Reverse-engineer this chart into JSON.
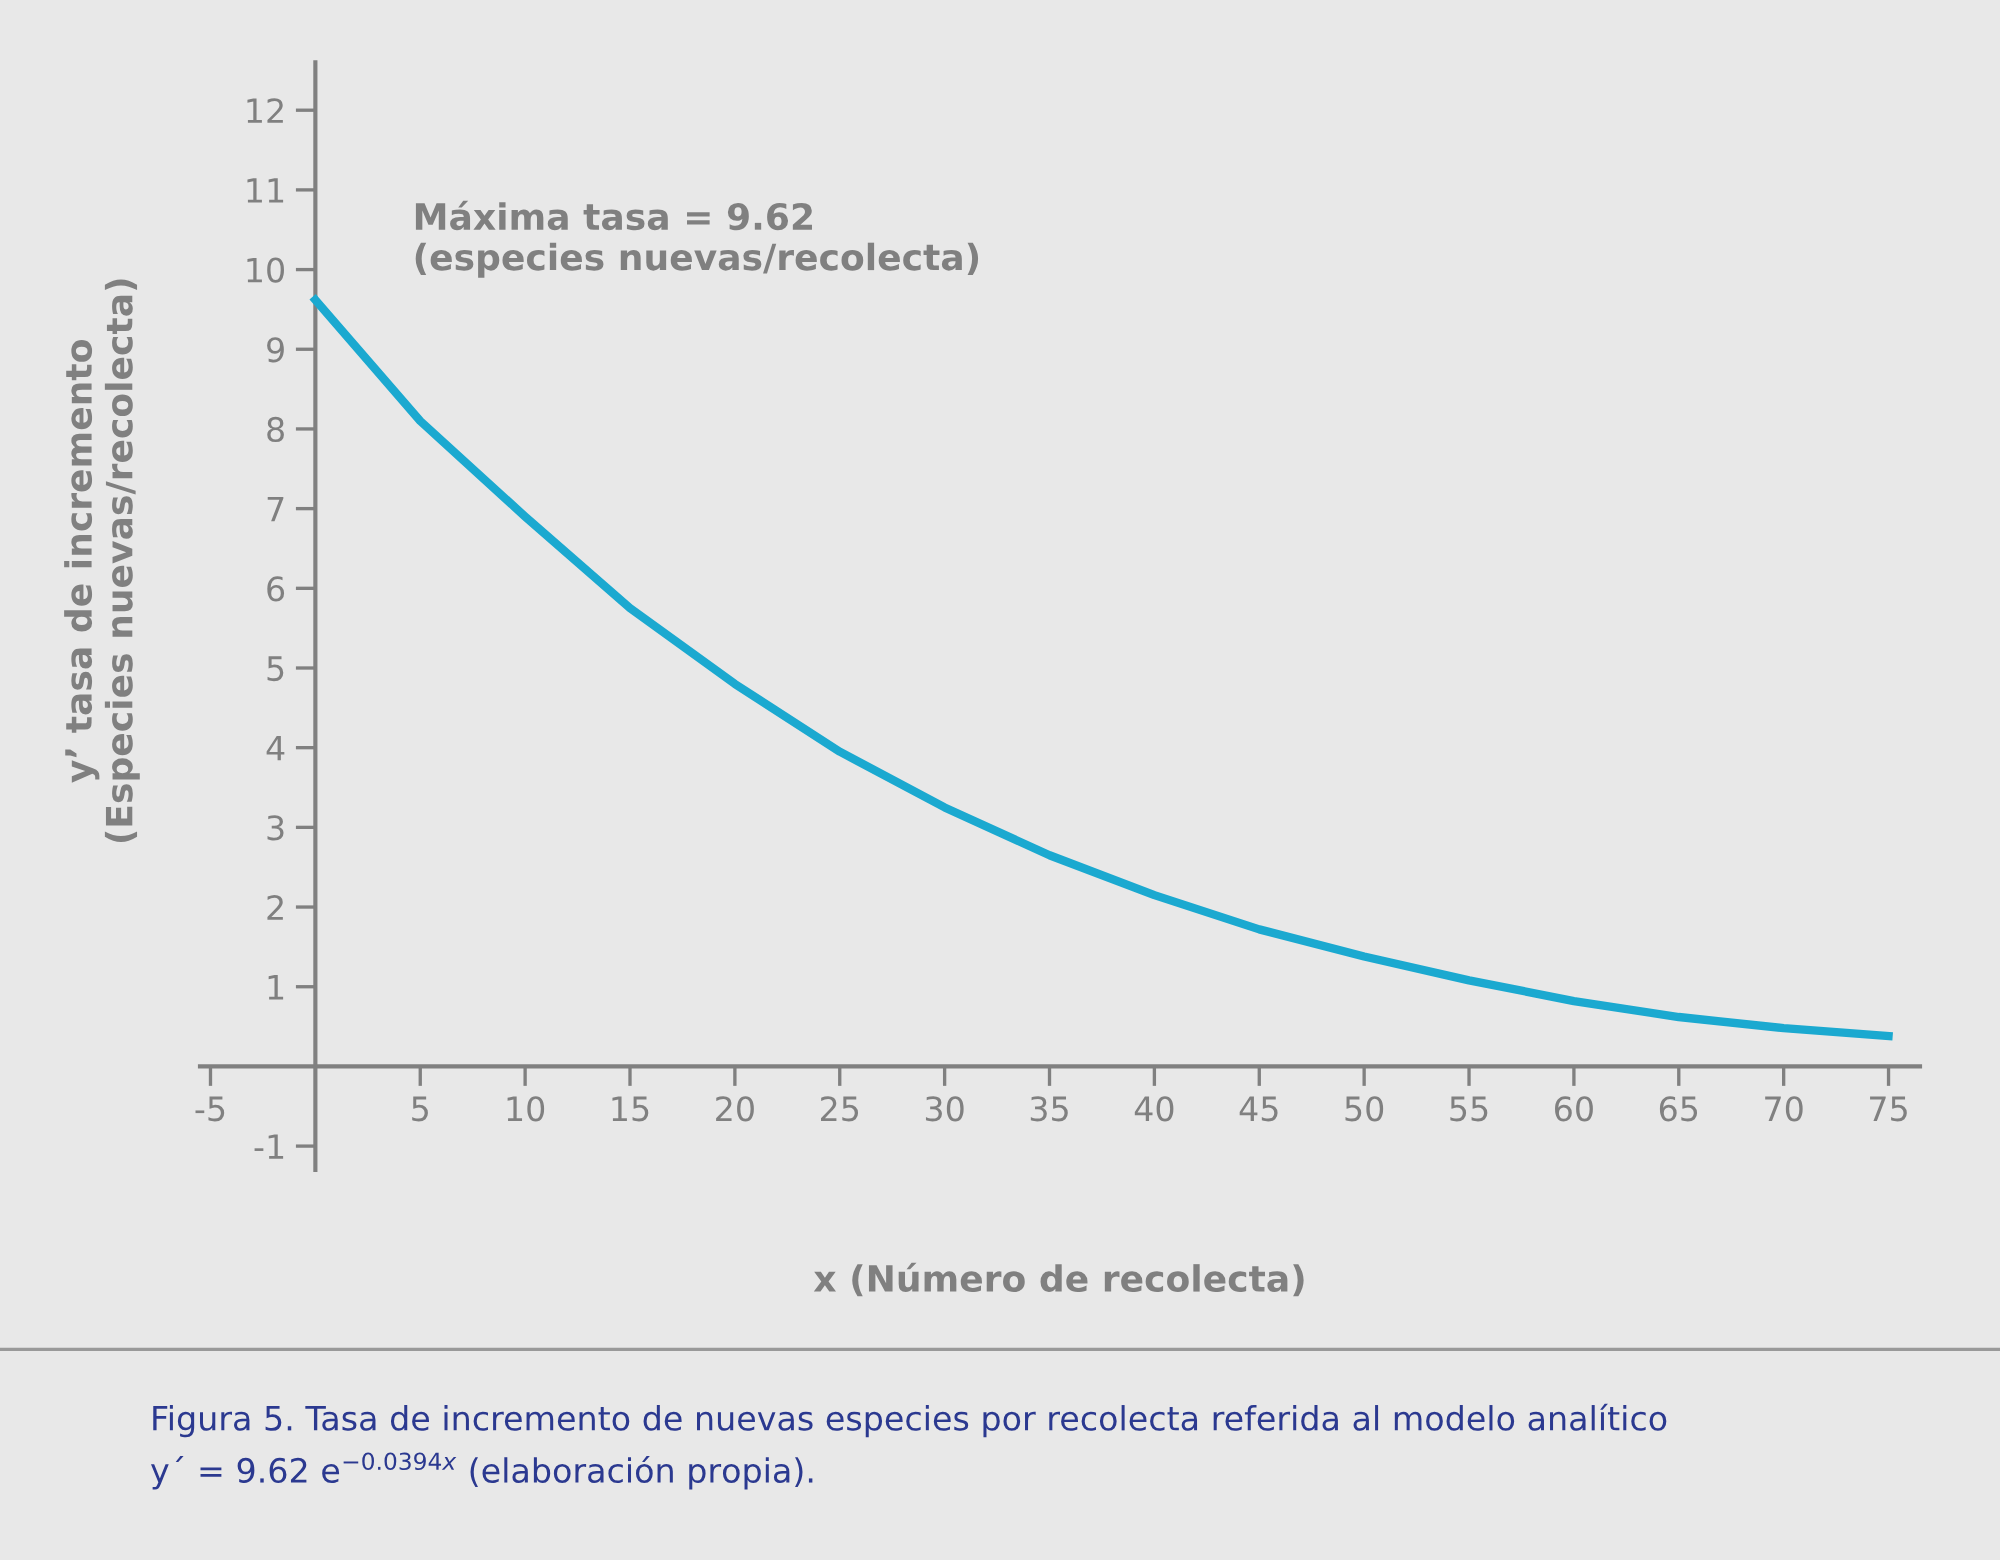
{
  "chart_data": {
    "type": "line",
    "x": [
      0,
      5,
      10,
      15,
      20,
      25,
      30,
      35,
      40,
      45,
      50,
      55,
      60,
      65,
      70,
      75
    ],
    "series": [
      {
        "color": "#1ba9d0",
        "values": [
          9.62,
          8.1,
          6.9,
          5.75,
          4.8,
          3.95,
          3.25,
          2.65,
          2.15,
          1.72,
          1.38,
          1.08,
          0.82,
          0.62,
          0.48,
          0.38
        ]
      }
    ],
    "xlabel": "x (Número de recolecta)",
    "ylabel": "y’ tasa de incremento\n(Especies nuevas/recolecta)",
    "xlim": [
      -5.5,
      76.5
    ],
    "ylim": [
      -1.3,
      12.6
    ],
    "xticks": [
      -5,
      5,
      10,
      15,
      20,
      25,
      30,
      35,
      40,
      45,
      50,
      55,
      60,
      65,
      70,
      75
    ],
    "yticks": [
      -1,
      1,
      2,
      3,
      4,
      5,
      6,
      7,
      8,
      9,
      10,
      11,
      12
    ],
    "grid": false,
    "legend": false,
    "marker": "none",
    "line_style": "solid",
    "annotations": [
      {
        "text": "Máxima tasa = 9.62\n(especies nuevas/recolecta)",
        "x": 0,
        "y": 9.62
      },
      "Figura 5. Tasa de incremento de nuevas especies por recolecta referida al modelo analítico\ny´ = 9.62 e$^{−0.0394x}$ (elaboración propia)."
    ]
  }
}
